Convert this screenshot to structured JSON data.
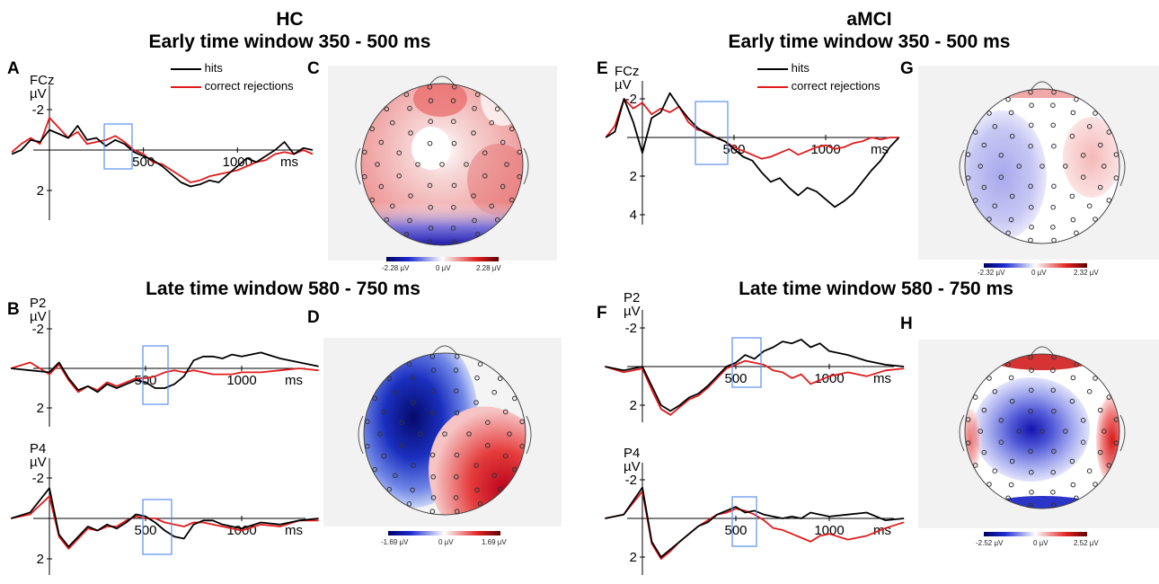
{
  "headings": {
    "hc": "HC",
    "amci": "aMCI",
    "early": "Early time window 350 - 500 ms",
    "late": "Late time window 580 - 750 ms"
  },
  "legend": {
    "hits": "hits",
    "cr": "correct rejections"
  },
  "colors": {
    "hits": "#000000",
    "cr": "#e31a1c",
    "box": "#5b8ff0"
  },
  "units": {
    "uv": "µV",
    "ms": "ms"
  },
  "channels": {
    "fcz": "FCz",
    "p2": "P2",
    "p4": "P4"
  },
  "panel_letters": [
    "A",
    "B",
    "C",
    "D",
    "E",
    "F",
    "G",
    "H"
  ],
  "colorbars": {
    "C": {
      "min": "-2.28 µV",
      "mid": "0 µV",
      "max": "2.28 µV"
    },
    "D": {
      "min": "-1.69 µV",
      "mid": "0 µV",
      "max": "1.69 µV"
    },
    "G": {
      "min": "-2.32 µV",
      "mid": "0 µV",
      "max": "2.32 µV"
    },
    "H": {
      "min": "-2.52 µV",
      "mid": "0 µV",
      "max": "2.52 µV"
    }
  },
  "chart_data": [
    {
      "id": "A",
      "type": "line",
      "channel": "FCz",
      "group": "HC",
      "window_ms": [
        350,
        500
      ],
      "x_ticks": [
        500,
        1000
      ],
      "y_ticks": [
        -2,
        2
      ],
      "series": [
        {
          "name": "hits",
          "x": [
            -200,
            -150,
            -100,
            -50,
            0,
            50,
            100,
            150,
            200,
            250,
            300,
            350,
            400,
            450,
            500,
            550,
            600,
            650,
            700,
            750,
            800,
            850,
            900,
            950,
            1000,
            1050,
            1100,
            1150,
            1200,
            1250,
            1300,
            1350,
            1400
          ],
          "y": [
            0.2,
            0.0,
            -0.5,
            -0.4,
            -1.0,
            -0.8,
            -0.6,
            -1.2,
            -0.5,
            -0.6,
            -0.2,
            -0.5,
            -0.3,
            0.1,
            0.3,
            0.5,
            0.8,
            1.2,
            1.6,
            1.8,
            1.7,
            1.5,
            1.6,
            1.2,
            0.8,
            0.4,
            0.6,
            0.3,
            0.0,
            -0.4,
            0.2,
            -0.1,
            0.0
          ]
        },
        {
          "name": "correct rejections",
          "x": [
            -200,
            -150,
            -100,
            -50,
            0,
            50,
            100,
            150,
            200,
            250,
            300,
            350,
            400,
            450,
            500,
            550,
            600,
            650,
            700,
            750,
            800,
            850,
            900,
            950,
            1000,
            1050,
            1100,
            1150,
            1200,
            1250,
            1300,
            1350,
            1400
          ],
          "y": [
            0.1,
            -0.3,
            -0.6,
            -0.3,
            -1.6,
            -1.1,
            -0.6,
            -0.9,
            -0.3,
            -0.4,
            -0.5,
            -0.7,
            -0.4,
            0.0,
            0.2,
            0.6,
            0.7,
            1.0,
            1.3,
            1.6,
            1.5,
            1.3,
            1.2,
            1.1,
            1.0,
            0.8,
            0.6,
            0.5,
            0.2,
            0.1,
            0.2,
            0.0,
            0.2
          ]
        }
      ]
    },
    {
      "id": "B-P2",
      "type": "line",
      "channel": "P2",
      "group": "HC",
      "window_ms": [
        580,
        750
      ],
      "x_ticks": [
        500,
        1000
      ],
      "y_ticks": [
        -2,
        2
      ],
      "series": [
        {
          "name": "hits",
          "x": [
            -200,
            -100,
            0,
            50,
            100,
            150,
            200,
            250,
            300,
            350,
            400,
            450,
            500,
            550,
            600,
            650,
            700,
            750,
            800,
            850,
            900,
            950,
            1000,
            1100,
            1200,
            1300,
            1400
          ],
          "y": [
            0.0,
            0.1,
            0.2,
            -0.3,
            0.5,
            1.1,
            0.9,
            1.2,
            0.8,
            1.0,
            0.8,
            0.6,
            0.7,
            1.0,
            1.0,
            0.8,
            0.4,
            -0.4,
            -0.6,
            -0.6,
            -0.5,
            -0.7,
            -0.6,
            -0.8,
            -0.5,
            -0.3,
            -0.1
          ]
        },
        {
          "name": "correct rejections",
          "x": [
            -200,
            -100,
            0,
            50,
            100,
            150,
            200,
            250,
            300,
            350,
            400,
            450,
            500,
            550,
            600,
            650,
            700,
            750,
            800,
            850,
            900,
            950,
            1000,
            1100,
            1200,
            1300,
            1400
          ],
          "y": [
            0.0,
            -0.3,
            0.3,
            -0.2,
            0.6,
            1.2,
            0.9,
            1.1,
            0.7,
            0.9,
            0.7,
            0.5,
            0.5,
            0.4,
            0.2,
            0.1,
            0.2,
            0.1,
            0.2,
            0.3,
            0.3,
            0.3,
            0.2,
            0.2,
            0.1,
            0.0,
            0.1
          ]
        }
      ]
    },
    {
      "id": "B-P4",
      "type": "line",
      "channel": "P4",
      "group": "HC",
      "window_ms": [
        580,
        750
      ],
      "x_ticks": [
        500,
        1000
      ],
      "y_ticks": [
        -2,
        2
      ],
      "series": [
        {
          "name": "hits",
          "x": [
            -200,
            -100,
            0,
            50,
            100,
            150,
            200,
            250,
            300,
            350,
            400,
            450,
            500,
            550,
            600,
            650,
            700,
            750,
            800,
            850,
            900,
            950,
            1000,
            1100,
            1200,
            1300,
            1400
          ],
          "y": [
            0.0,
            -0.3,
            -1.5,
            0.8,
            1.4,
            0.9,
            0.4,
            0.6,
            0.3,
            0.5,
            0.2,
            -0.2,
            -0.1,
            0.2,
            0.6,
            0.9,
            1.0,
            0.3,
            0.1,
            0.1,
            0.3,
            0.4,
            0.5,
            0.2,
            0.3,
            0.1,
            0.0
          ]
        },
        {
          "name": "correct rejections",
          "x": [
            -200,
            -100,
            0,
            50,
            100,
            150,
            200,
            250,
            300,
            350,
            400,
            450,
            500,
            550,
            600,
            650,
            700,
            750,
            800,
            850,
            900,
            950,
            1000,
            1100,
            1200,
            1300,
            1400
          ],
          "y": [
            0.0,
            -0.2,
            -1.1,
            0.9,
            1.5,
            1.0,
            0.5,
            0.6,
            0.4,
            0.4,
            0.1,
            -0.1,
            0.0,
            0.0,
            0.2,
            0.3,
            0.4,
            0.2,
            0.2,
            0.3,
            0.4,
            0.5,
            0.6,
            0.3,
            0.4,
            0.1,
            0.1
          ]
        }
      ]
    },
    {
      "id": "E",
      "type": "line",
      "channel": "FCz",
      "group": "aMCI",
      "window_ms": [
        350,
        500
      ],
      "x_ticks": [
        500,
        1000
      ],
      "y_ticks": [
        -2,
        2,
        4
      ],
      "series": [
        {
          "name": "hits",
          "x": [
            -200,
            -150,
            -100,
            -50,
            0,
            50,
            100,
            150,
            200,
            250,
            300,
            350,
            400,
            450,
            500,
            550,
            600,
            650,
            700,
            750,
            800,
            850,
            900,
            950,
            1000,
            1050,
            1100,
            1150,
            1200,
            1250,
            1300,
            1350,
            1400
          ],
          "y": [
            0.0,
            -0.3,
            -2.0,
            -0.8,
            0.8,
            -1.0,
            -1.3,
            -2.3,
            -1.6,
            -1.0,
            -0.5,
            -0.2,
            0.0,
            0.2,
            0.6,
            1.0,
            1.2,
            1.8,
            2.3,
            2.1,
            2.6,
            3.0,
            2.6,
            2.8,
            3.2,
            3.6,
            3.3,
            2.9,
            2.3,
            1.7,
            1.2,
            0.5,
            0.0
          ]
        },
        {
          "name": "correct rejections",
          "x": [
            -200,
            -150,
            -100,
            -50,
            0,
            50,
            100,
            150,
            200,
            250,
            300,
            350,
            400,
            450,
            500,
            550,
            600,
            650,
            700,
            750,
            800,
            850,
            900,
            950,
            1000,
            1050,
            1100,
            1150,
            1200,
            1250,
            1300,
            1350,
            1400
          ],
          "y": [
            0.0,
            -0.6,
            -2.0,
            -1.5,
            -1.8,
            -1.2,
            -1.5,
            -1.3,
            -1.6,
            -0.8,
            -0.4,
            -0.3,
            0.0,
            0.2,
            0.5,
            0.7,
            0.9,
            1.1,
            1.0,
            0.8,
            0.6,
            0.9,
            0.7,
            0.5,
            0.4,
            0.6,
            0.5,
            0.3,
            0.2,
            0.0,
            0.1,
            0.0,
            0.0
          ]
        }
      ]
    },
    {
      "id": "F-P2",
      "type": "line",
      "channel": "P2",
      "group": "aMCI",
      "window_ms": [
        580,
        750
      ],
      "x_ticks": [
        500,
        1000
      ],
      "y_ticks": [
        -2,
        2
      ],
      "series": [
        {
          "name": "hits",
          "x": [
            -200,
            -100,
            0,
            50,
            100,
            150,
            200,
            250,
            300,
            350,
            400,
            450,
            500,
            550,
            600,
            650,
            700,
            750,
            800,
            850,
            900,
            950,
            1000,
            1100,
            1200,
            1300,
            1400
          ],
          "y": [
            0.0,
            0.2,
            0.0,
            1.0,
            2.0,
            2.3,
            2.0,
            1.6,
            1.4,
            1.0,
            0.5,
            0.0,
            -0.2,
            -0.6,
            -0.4,
            -0.8,
            -1.0,
            -1.3,
            -1.2,
            -1.4,
            -1.0,
            -1.2,
            -0.8,
            -0.6,
            -0.3,
            -0.1,
            0.0
          ]
        },
        {
          "name": "correct rejections",
          "x": [
            -200,
            -100,
            0,
            50,
            100,
            150,
            200,
            250,
            300,
            350,
            400,
            450,
            500,
            550,
            600,
            650,
            700,
            750,
            800,
            850,
            900,
            950,
            1000,
            1100,
            1200,
            1300,
            1400
          ],
          "y": [
            0.0,
            0.3,
            0.1,
            1.2,
            2.2,
            2.5,
            2.1,
            1.7,
            1.5,
            1.1,
            0.6,
            0.1,
            -0.1,
            -0.3,
            -0.2,
            -0.1,
            0.2,
            0.3,
            0.6,
            0.4,
            0.9,
            0.7,
            0.5,
            0.3,
            0.5,
            0.2,
            0.1
          ]
        }
      ]
    },
    {
      "id": "F-P4",
      "type": "line",
      "channel": "P4",
      "group": "aMCI",
      "window_ms": [
        580,
        750
      ],
      "x_ticks": [
        500,
        1000
      ],
      "y_ticks": [
        -2,
        2
      ],
      "series": [
        {
          "name": "hits",
          "x": [
            -200,
            -100,
            0,
            50,
            100,
            150,
            200,
            250,
            300,
            350,
            400,
            450,
            500,
            550,
            600,
            650,
            700,
            750,
            800,
            850,
            900,
            950,
            1000,
            1100,
            1200,
            1300,
            1400
          ],
          "y": [
            0.0,
            -0.2,
            -1.6,
            1.2,
            2.0,
            1.6,
            1.2,
            0.8,
            0.4,
            0.2,
            -0.2,
            -0.4,
            -0.6,
            -0.3,
            -0.4,
            -0.2,
            -0.1,
            0.0,
            -0.1,
            0.0,
            -0.3,
            -0.2,
            -0.1,
            -0.2,
            -0.3,
            0.1,
            0.0
          ]
        },
        {
          "name": "correct rejections",
          "x": [
            -200,
            -100,
            0,
            50,
            100,
            150,
            200,
            250,
            300,
            350,
            400,
            450,
            500,
            550,
            600,
            650,
            700,
            750,
            800,
            850,
            900,
            950,
            1000,
            1100,
            1200,
            1300,
            1400
          ],
          "y": [
            0.0,
            -0.2,
            -1.4,
            1.3,
            2.1,
            1.7,
            1.2,
            0.8,
            0.4,
            0.1,
            -0.2,
            -0.3,
            -0.5,
            -0.4,
            -0.2,
            0.1,
            0.5,
            0.6,
            0.8,
            1.0,
            1.2,
            0.9,
            0.8,
            1.1,
            0.9,
            0.5,
            0.2
          ]
        }
      ]
    }
  ]
}
